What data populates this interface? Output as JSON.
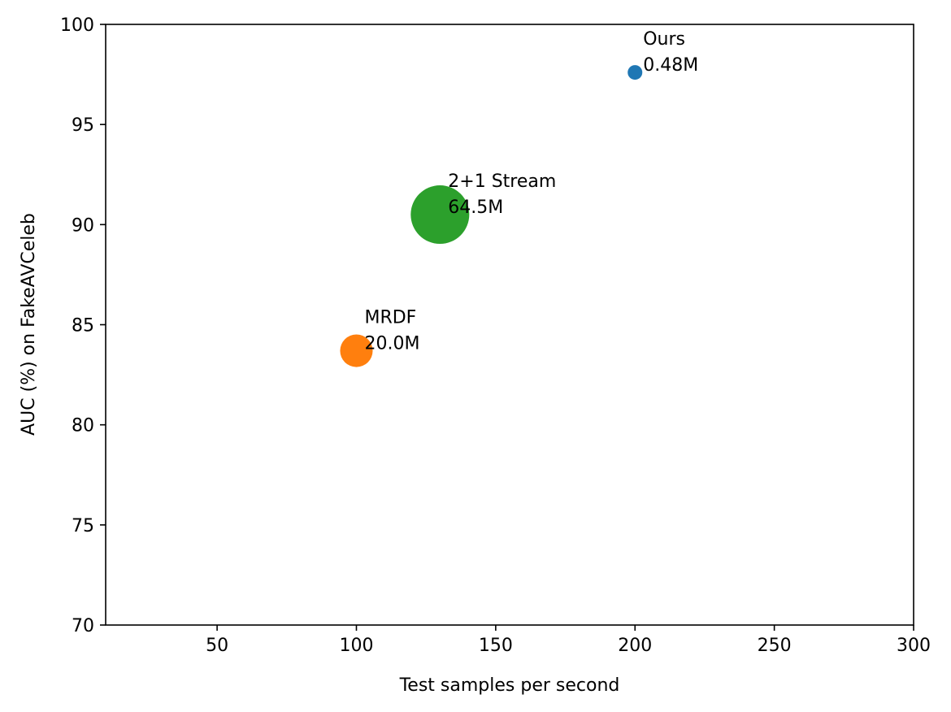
{
  "chart_data": {
    "type": "scatter",
    "title": "",
    "xlabel": "Test samples per second",
    "ylabel": "AUC (%) on FakeAVCeleb",
    "xlim": [
      10,
      300
    ],
    "ylim": [
      70,
      100
    ],
    "xticks": [
      50,
      100,
      150,
      200,
      250,
      300
    ],
    "yticks": [
      70,
      75,
      80,
      85,
      90,
      95,
      100
    ],
    "grid": false,
    "bubble_size_meaning": "model parameters (M)",
    "points": [
      {
        "label": "Ours",
        "params_label": "0.48M",
        "params_m": 0.48,
        "x": 200,
        "y": 97.6,
        "color": "#1f77b4"
      },
      {
        "label": "2+1 Stream",
        "params_label": "64.5M",
        "params_m": 64.5,
        "x": 130,
        "y": 90.5,
        "color": "#2ca02c"
      },
      {
        "label": "MRDF",
        "params_label": "20.0M",
        "params_m": 20.0,
        "x": 100,
        "y": 83.7,
        "color": "#ff7f0e"
      }
    ]
  }
}
